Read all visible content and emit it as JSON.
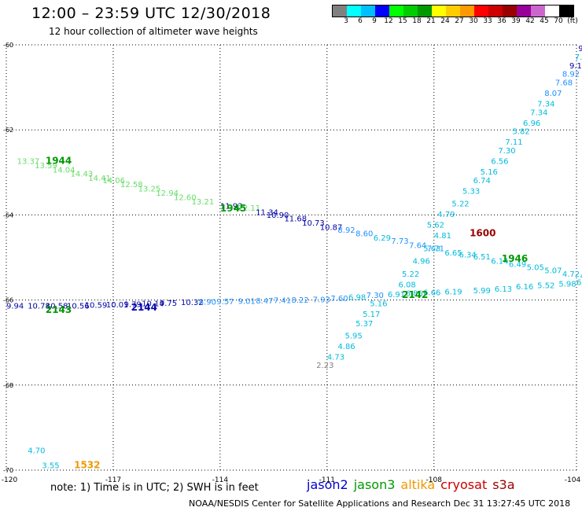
{
  "header": {
    "title": "12:00 – 23:59 UTC 12/30/2018",
    "subtitle": "12 hour collection of altimeter wave heights"
  },
  "colorbar": {
    "colors": [
      "#808080",
      "#00ffff",
      "#00bfff",
      "#0000ff",
      "#00ff00",
      "#00cc00",
      "#009900",
      "#ffff00",
      "#ffcc00",
      "#ff9900",
      "#ff0000",
      "#cc0000",
      "#990000",
      "#990099",
      "#cc66cc",
      "#ffffff",
      "#000000"
    ],
    "labels": [
      "3",
      "6",
      "9",
      "12",
      "15",
      "18",
      "21",
      "24",
      "27",
      "30",
      "33",
      "36",
      "39",
      "42",
      "45",
      "70",
      "(ft)"
    ]
  },
  "map": {
    "lon_range": [
      -120,
      -104
    ],
    "lat_range": [
      -70,
      -60
    ],
    "lon_ticks": [
      "-120",
      "-117",
      "-114",
      "-111",
      "-108",
      "-104"
    ],
    "lat_ticks": [
      "-60",
      "-62",
      "-64",
      "-66",
      "-68",
      "-70"
    ],
    "tracks": [
      {
        "name": "jason2-1945",
        "time_label": "1945",
        "time_color": "#009900",
        "time_pos": [
          -114.0,
          -63.92
        ],
        "points": [
          {
            "lon": -119.7,
            "lat": -62.8,
            "v": "13.37",
            "c": "#66dd66"
          },
          {
            "lon": -119.2,
            "lat": -62.9,
            "v": "13.59",
            "c": "#66dd66"
          },
          {
            "lon": -118.7,
            "lat": -63.0,
            "v": "14.04",
            "c": "#66dd66"
          },
          {
            "lon": -118.2,
            "lat": -63.1,
            "v": "14.43",
            "c": "#66dd66"
          },
          {
            "lon": -117.7,
            "lat": -63.2,
            "v": "14.41",
            "c": "#66dd66"
          },
          {
            "lon": -117.3,
            "lat": -63.25,
            "v": "14.06",
            "c": "#66dd66"
          },
          {
            "lon": -116.8,
            "lat": -63.35,
            "v": "12.58",
            "c": "#66dd66"
          },
          {
            "lon": -116.3,
            "lat": -63.45,
            "v": "13.25",
            "c": "#66dd66"
          },
          {
            "lon": -115.8,
            "lat": -63.55,
            "v": "12.94",
            "c": "#66dd66"
          },
          {
            "lon": -115.3,
            "lat": -63.65,
            "v": "12.60",
            "c": "#66dd66"
          },
          {
            "lon": -114.8,
            "lat": -63.75,
            "v": "13.21",
            "c": "#66dd66"
          },
          {
            "lon": -114.0,
            "lat": -63.85,
            "v": "11.93",
            "c": "#0000aa"
          },
          {
            "lon": -113.5,
            "lat": -63.9,
            "v": "12.11",
            "c": "#66dd66"
          },
          {
            "lon": -113.0,
            "lat": -64.0,
            "v": "11.34",
            "c": "#0000aa"
          },
          {
            "lon": -112.7,
            "lat": -64.07,
            "v": "10.90",
            "c": "#0000aa"
          },
          {
            "lon": -112.2,
            "lat": -64.15,
            "v": "11.68",
            "c": "#0000aa"
          },
          {
            "lon": -111.7,
            "lat": -64.25,
            "v": "10.73",
            "c": "#0000aa"
          },
          {
            "lon": -111.2,
            "lat": -64.35,
            "v": "10.87",
            "c": "#0000aa"
          },
          {
            "lon": -110.7,
            "lat": -64.42,
            "v": "8.92",
            "c": "#1f8fff"
          },
          {
            "lon": -110.2,
            "lat": -64.5,
            "v": "8.60",
            "c": "#1f8fff"
          },
          {
            "lon": -109.7,
            "lat": -64.6,
            "v": "6.29",
            "c": "#00bbdd"
          },
          {
            "lon": -109.2,
            "lat": -64.68,
            "v": "7.73",
            "c": "#1f8fff"
          },
          {
            "lon": -108.7,
            "lat": -64.78,
            "v": "7.64",
            "c": "#1f8fff"
          },
          {
            "lon": -108.2,
            "lat": -64.85,
            "v": "7.71",
            "c": "#1f8fff"
          },
          {
            "lon": -107.7,
            "lat": -64.95,
            "v": "6.65",
            "c": "#00bbdd"
          },
          {
            "lon": -107.3,
            "lat": -65.0,
            "v": "6.34",
            "c": "#00bbdd"
          },
          {
            "lon": -106.9,
            "lat": -65.05,
            "v": "6.51",
            "c": "#00bbdd"
          },
          {
            "lon": -106.4,
            "lat": -65.15,
            "v": "6.14",
            "c": "#00bbdd"
          },
          {
            "lon": -105.9,
            "lat": -65.22,
            "v": "6.49",
            "c": "#00bbdd"
          },
          {
            "lon": -105.4,
            "lat": -65.3,
            "v": "5.05",
            "c": "#00bbdd"
          },
          {
            "lon": -104.9,
            "lat": -65.37,
            "v": "5.07",
            "c": "#00bbdd"
          },
          {
            "lon": -104.4,
            "lat": -65.45,
            "v": "4.72",
            "c": "#00bbdd"
          },
          {
            "lon": -103.9,
            "lat": -65.5,
            "v": "4.56",
            "c": "#00bbdd"
          }
        ]
      },
      {
        "name": "jason3-1944",
        "time_label": "1944",
        "time_color": "#009900",
        "time_pos": [
          -118.9,
          -62.8
        ],
        "points": []
      },
      {
        "name": "jason3-1946",
        "time_label": "1946",
        "time_color": "#009900",
        "time_pos": [
          -106.1,
          -65.1
        ],
        "points": []
      },
      {
        "name": "jason3-2142",
        "time_label": "2142",
        "time_color": "#009900",
        "time_pos": [
          -108.9,
          -65.95
        ],
        "points": [
          {
            "lon": -120.0,
            "lat": -66.2,
            "v": "9.94",
            "c": "#0000aa"
          },
          {
            "lon": -119.4,
            "lat": -66.2,
            "v": "10.78",
            "c": "#0000aa"
          },
          {
            "lon": -118.9,
            "lat": -66.2,
            "v": "10.58",
            "c": "#0000aa"
          },
          {
            "lon": -118.3,
            "lat": -66.2,
            "v": "10.56",
            "c": "#0000aa"
          },
          {
            "lon": -117.8,
            "lat": -66.18,
            "v": "10.59",
            "c": "#0000aa"
          },
          {
            "lon": -117.2,
            "lat": -66.17,
            "v": "10.01",
            "c": "#0000aa"
          },
          {
            "lon": -116.7,
            "lat": -66.16,
            "v": "9.79",
            "c": "#0000aa"
          },
          {
            "lon": -116.2,
            "lat": -66.15,
            "v": "10.14",
            "c": "#0000aa"
          },
          {
            "lon": -115.7,
            "lat": -66.14,
            "v": "9.75",
            "c": "#0000aa"
          },
          {
            "lon": -115.1,
            "lat": -66.12,
            "v": "10.32",
            "c": "#0000aa"
          },
          {
            "lon": -114.6,
            "lat": -66.11,
            "v": "8.90",
            "c": "#1f8fff"
          },
          {
            "lon": -114.1,
            "lat": -66.1,
            "v": "9.57",
            "c": "#1f8fff"
          },
          {
            "lon": -113.5,
            "lat": -66.09,
            "v": "9.01",
            "c": "#1f8fff"
          },
          {
            "lon": -113.0,
            "lat": -66.08,
            "v": "8.47",
            "c": "#1f8fff"
          },
          {
            "lon": -112.5,
            "lat": -66.07,
            "v": "7.41",
            "c": "#1f8fff"
          },
          {
            "lon": -112.0,
            "lat": -66.06,
            "v": "8.22",
            "c": "#1f8fff"
          },
          {
            "lon": -111.4,
            "lat": -66.05,
            "v": "7.93",
            "c": "#1f8fff"
          },
          {
            "lon": -110.9,
            "lat": -66.03,
            "v": "7.60",
            "c": "#1f8fff"
          },
          {
            "lon": -110.4,
            "lat": -66.0,
            "v": "6.98",
            "c": "#00bbdd"
          },
          {
            "lon": -109.9,
            "lat": -65.95,
            "v": "7.30",
            "c": "#1f8fff"
          },
          {
            "lon": -109.3,
            "lat": -65.93,
            "v": "6.91",
            "c": "#00bbdd"
          },
          {
            "lon": -108.8,
            "lat": -65.91,
            "v": "6.86",
            "c": "#00bbdd"
          },
          {
            "lon": -108.3,
            "lat": -65.89,
            "v": "6.66",
            "c": "#00bbdd"
          },
          {
            "lon": -107.7,
            "lat": -65.87,
            "v": "6.19",
            "c": "#00bbdd"
          },
          {
            "lon": -106.9,
            "lat": -65.84,
            "v": "5.99",
            "c": "#00bbdd"
          },
          {
            "lon": -106.3,
            "lat": -65.8,
            "v": "6.13",
            "c": "#00bbdd"
          },
          {
            "lon": -105.7,
            "lat": -65.75,
            "v": "6.16",
            "c": "#00bbdd"
          },
          {
            "lon": -105.1,
            "lat": -65.72,
            "v": "5.52",
            "c": "#00bbdd"
          },
          {
            "lon": -104.5,
            "lat": -65.68,
            "v": "5.98",
            "c": "#00bbdd"
          },
          {
            "lon": -104.0,
            "lat": -65.65,
            "v": "6.00",
            "c": "#00bbdd"
          }
        ]
      },
      {
        "name": "jason2-2143",
        "time_label": "2143",
        "time_color": "#009900",
        "time_pos": [
          -118.9,
          -66.3
        ],
        "points": []
      },
      {
        "name": "jason2-2144",
        "time_label": "2144",
        "time_color": "#0000aa",
        "time_pos": [
          -116.5,
          -66.25
        ],
        "points": []
      },
      {
        "name": "s3a-ascending",
        "time_label": "",
        "time_color": "#00bbdd",
        "time_pos": [
          -111,
          -67
        ],
        "points": [
          {
            "lon": -111.3,
            "lat": -67.6,
            "v": "2.23",
            "c": "#808080"
          },
          {
            "lon": -111.0,
            "lat": -67.4,
            "v": "4.73",
            "c": "#00bbdd"
          },
          {
            "lon": -110.7,
            "lat": -67.15,
            "v": "4.86",
            "c": "#00bbdd"
          },
          {
            "lon": -110.5,
            "lat": -66.9,
            "v": "5.95",
            "c": "#00bbdd"
          },
          {
            "lon": -110.2,
            "lat": -66.62,
            "v": "5.37",
            "c": "#00bbdd"
          },
          {
            "lon": -110.0,
            "lat": -66.4,
            "v": "5.17",
            "c": "#00bbdd"
          },
          {
            "lon": -109.8,
            "lat": -66.15,
            "v": "5.16",
            "c": "#00bbdd"
          },
          {
            "lon": -109.0,
            "lat": -65.7,
            "v": "6.08",
            "c": "#00bbdd"
          },
          {
            "lon": -108.9,
            "lat": -65.45,
            "v": "5.22",
            "c": "#00bbdd"
          },
          {
            "lon": -108.6,
            "lat": -65.15,
            "v": "4.96",
            "c": "#00bbdd"
          },
          {
            "lon": -108.3,
            "lat": -64.85,
            "v": "5.63",
            "c": "#00bbdd"
          },
          {
            "lon": -108.0,
            "lat": -64.55,
            "v": "4.81",
            "c": "#00bbdd"
          },
          {
            "lon": -108.2,
            "lat": -64.3,
            "v": "5.62",
            "c": "#00bbdd"
          },
          {
            "lon": -107.9,
            "lat": -64.05,
            "v": "4.79",
            "c": "#00bbdd"
          },
          {
            "lon": -107.5,
            "lat": -63.8,
            "v": "5.22",
            "c": "#00bbdd"
          },
          {
            "lon": -107.2,
            "lat": -63.5,
            "v": "5.33",
            "c": "#00bbdd"
          },
          {
            "lon": -106.9,
            "lat": -63.25,
            "v": "6.74",
            "c": "#00bbdd"
          },
          {
            "lon": -106.7,
            "lat": -63.05,
            "v": "5.16",
            "c": "#00bbdd"
          },
          {
            "lon": -106.4,
            "lat": -62.8,
            "v": "6.56",
            "c": "#00bbdd"
          },
          {
            "lon": -106.2,
            "lat": -62.55,
            "v": "7.30",
            "c": "#00bbdd"
          },
          {
            "lon": -106.0,
            "lat": -62.35,
            "v": "7.11",
            "c": "#00bbdd"
          },
          {
            "lon": -105.8,
            "lat": -62.1,
            "v": "5.82",
            "c": "#00bbdd"
          },
          {
            "lon": -105.5,
            "lat": -61.9,
            "v": "6.96",
            "c": "#00bbdd"
          },
          {
            "lon": -105.3,
            "lat": -61.65,
            "v": "7.34",
            "c": "#00bbdd"
          },
          {
            "lon": -105.1,
            "lat": -61.45,
            "v": "7.34",
            "c": "#00bbdd"
          },
          {
            "lon": -104.9,
            "lat": -61.2,
            "v": "8.07",
            "c": "#1f8fff"
          },
          {
            "lon": -104.6,
            "lat": -60.95,
            "v": "7.68",
            "c": "#1f8fff"
          },
          {
            "lon": -104.4,
            "lat": -60.75,
            "v": "8.92",
            "c": "#1f8fff"
          },
          {
            "lon": -104.2,
            "lat": -60.55,
            "v": "9.10",
            "c": "#0000aa"
          },
          {
            "lon": -104.05,
            "lat": -60.35,
            "v": "7.",
            "c": "#00bbdd"
          },
          {
            "lon": -103.95,
            "lat": -60.15,
            "v": "9",
            "c": "#0000aa"
          }
        ]
      },
      {
        "name": "cryosat-1600",
        "time_label": "1600",
        "time_color": "#990000",
        "time_pos": [
          -107.0,
          -64.5
        ],
        "points": []
      },
      {
        "name": "altika-1532",
        "time_label": "1532",
        "time_color": "#ee9900",
        "time_pos": [
          -118.1,
          -69.95
        ],
        "points": [
          {
            "lon": -119.4,
            "lat": -69.6,
            "v": "4.70",
            "c": "#00bbdd"
          },
          {
            "lon": -119.0,
            "lat": -69.95,
            "v": "3.55",
            "c": "#00bbdd"
          }
        ]
      }
    ]
  },
  "footer": {
    "note": "note:  1) Time is in UTC;  2) SWH is in feet",
    "legend": [
      {
        "label": "jason2",
        "color": "#0000cc"
      },
      {
        "label": "jason3",
        "color": "#009900"
      },
      {
        "label": "altika",
        "color": "#ee9900"
      },
      {
        "label": "cryosat",
        "color": "#cc0000"
      },
      {
        "label": "s3a",
        "color": "#990000"
      }
    ],
    "credit": "NOAA/NESDIS Center for Satellite Applications and Research     Dec 31 13:27:45 UTC 2018"
  }
}
